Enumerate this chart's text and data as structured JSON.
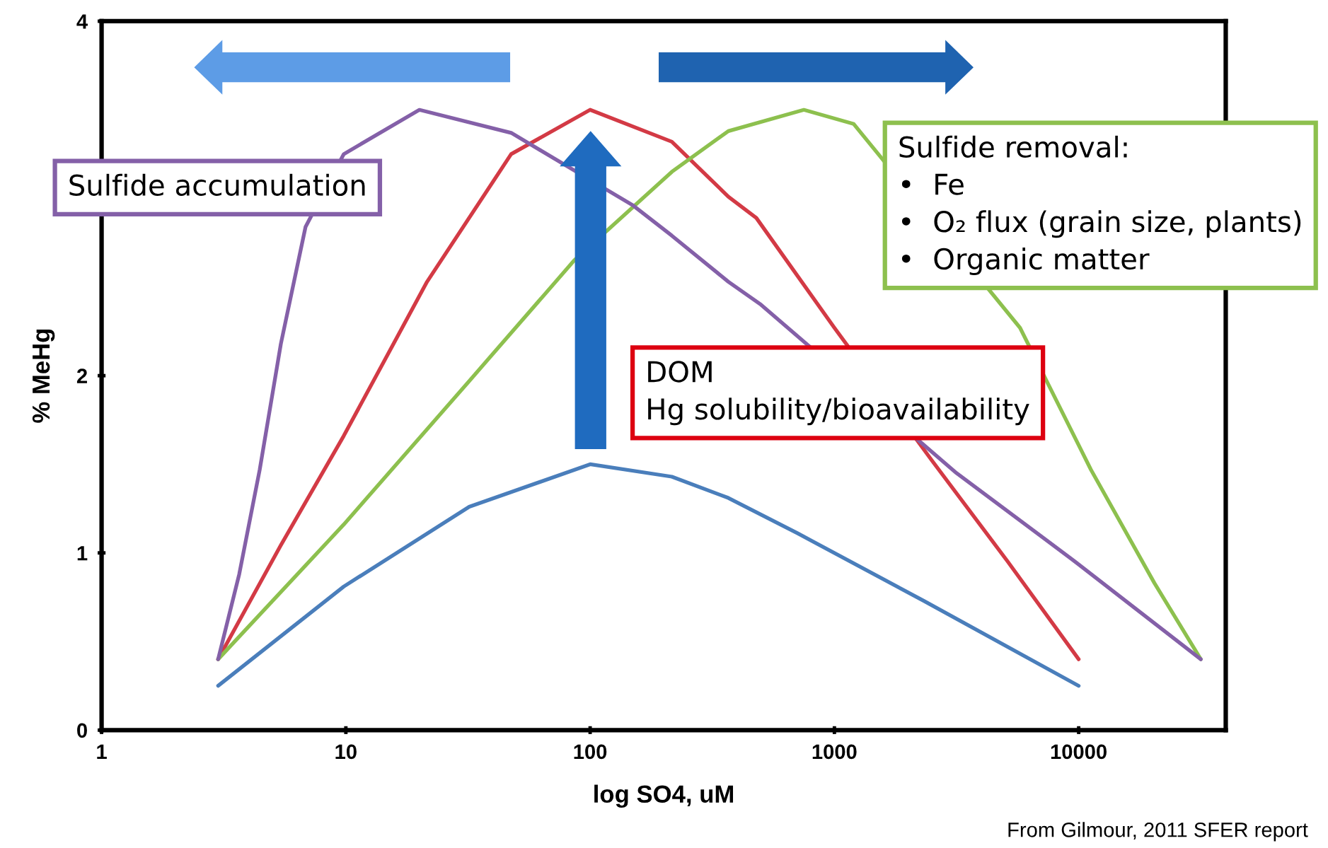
{
  "chart_data": {
    "type": "line",
    "xlabel": "log SO4, uM",
    "ylabel": "% MeHg",
    "log": "x",
    "xlim": [
      1,
      40000
    ],
    "ylim": [
      0,
      4
    ],
    "xticks": [
      1,
      10,
      100,
      1000,
      10000
    ],
    "yticks": [
      0,
      1,
      2,
      4
    ],
    "series": [
      {
        "color": "#4a7ebb",
        "x": [
          3,
          9.8,
          32,
          100,
          216,
          368,
          708,
          2317,
          10000
        ],
        "values": [
          0.25,
          0.81,
          1.26,
          1.5,
          1.43,
          1.31,
          1.11,
          0.73,
          0.25
        ]
      },
      {
        "color": "#d33a45",
        "x": [
          3,
          5.4,
          9.8,
          21.5,
          47.5,
          100,
          216,
          368,
          479,
          1000,
          2512,
          5129,
          10000
        ],
        "values": [
          0.4,
          1.04,
          1.66,
          2.53,
          3.25,
          3.5,
          3.32,
          3.01,
          2.89,
          2.27,
          1.52,
          0.95,
          0.4
        ]
      },
      {
        "color": "#8dc04e",
        "x": [
          3,
          9.8,
          32,
          86,
          216,
          368,
          750,
          1200,
          5754,
          11220,
          20417,
          31623
        ],
        "values": [
          0.4,
          1.16,
          1.97,
          2.65,
          3.15,
          3.38,
          3.5,
          3.42,
          2.27,
          1.47,
          0.83,
          0.4
        ]
      },
      {
        "color": "#8460a8",
        "x": [
          3,
          3.66,
          4.44,
          5.42,
          6.84,
          9.8,
          20,
          47.5,
          150,
          216,
          368,
          501,
          3162,
          9268,
          31623
        ],
        "values": [
          0.4,
          0.88,
          1.47,
          2.18,
          2.84,
          3.25,
          3.5,
          3.37,
          2.96,
          2.79,
          2.53,
          2.4,
          1.45,
          0.97,
          0.4
        ]
      }
    ],
    "annotations": [
      "Sulfide accumulation",
      "DOM\nHg solubility/bioavailability",
      "Sulfide removal:\n•  Fe\n•  O₂ flux (grain size, plants)\n•  Organic matter",
      "From Gilmour, 2011 SFER report"
    ]
  }
}
